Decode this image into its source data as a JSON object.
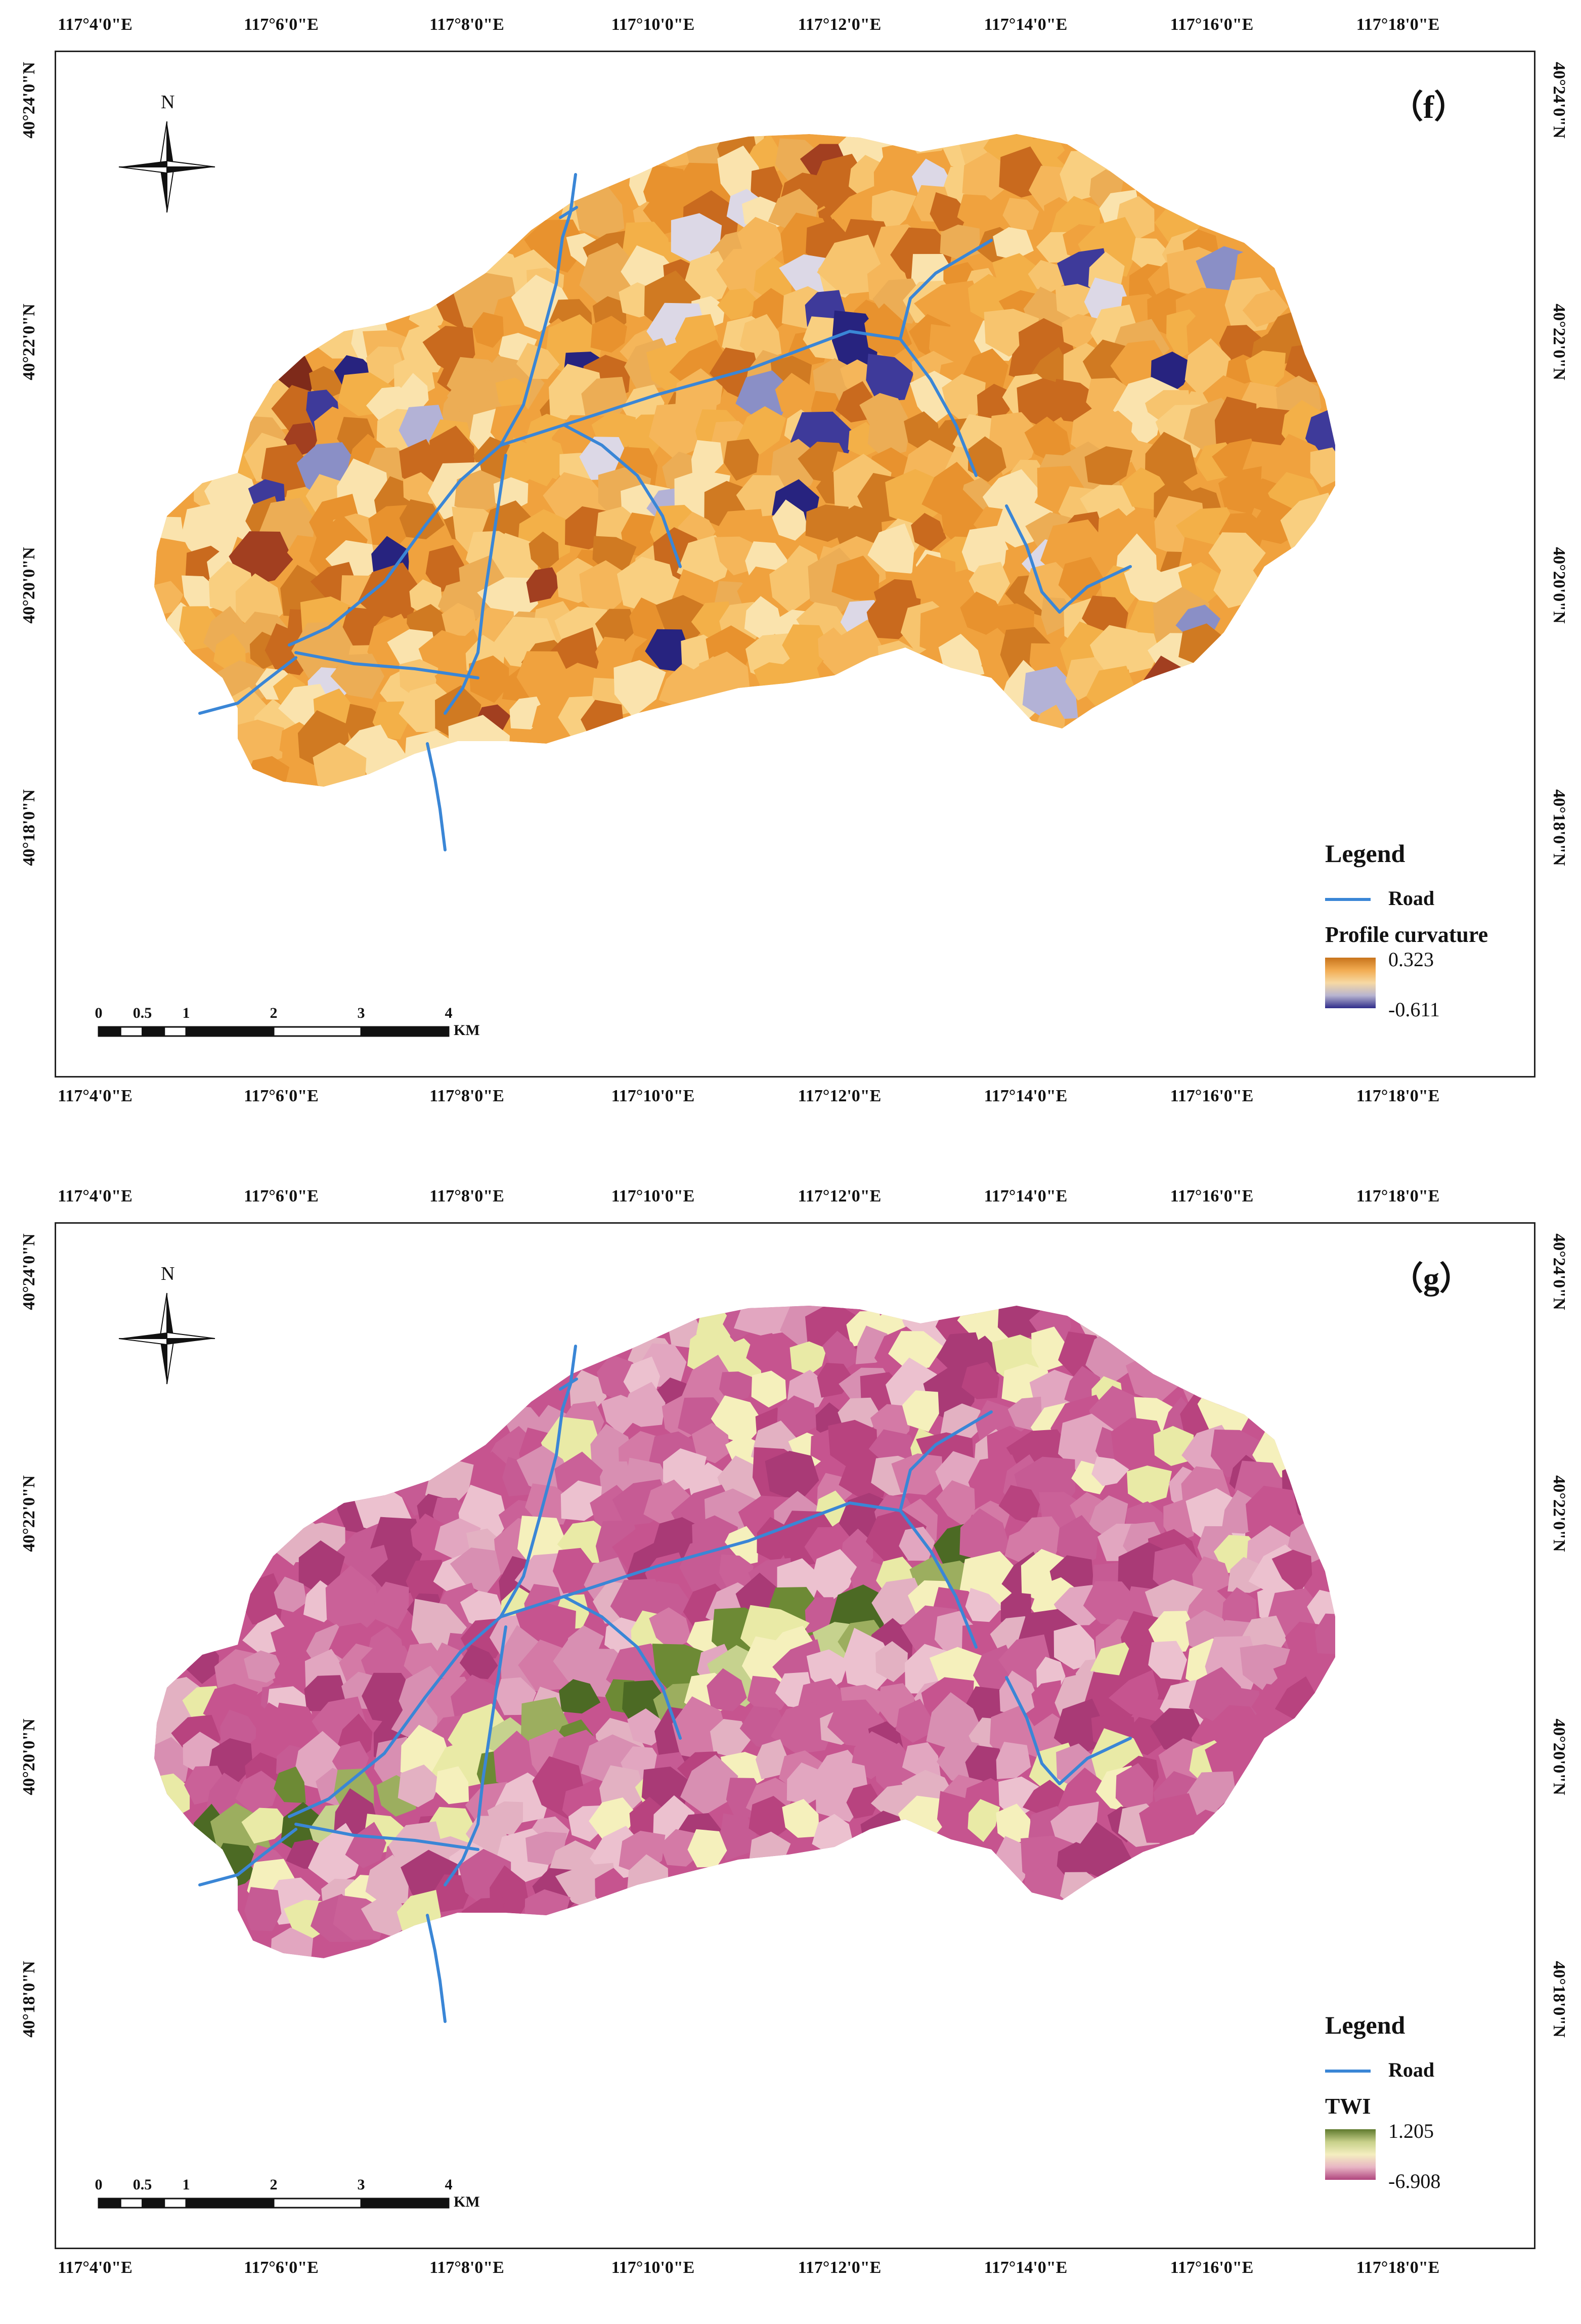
{
  "lon_labels": [
    "117°4'0\"E",
    "117°6'0\"E",
    "117°8'0\"E",
    "117°10'0\"E",
    "117°12'0\"E",
    "117°14'0\"E",
    "117°16'0\"E",
    "117°18'0\"E"
  ],
  "lat_labels": [
    "40°24'0\"N",
    "40°22'0\"N",
    "40°20'0\"N",
    "40°18'0\"N"
  ],
  "north_label": "N",
  "scale_bar": {
    "ticks": [
      "0",
      "0.5",
      "1",
      "2",
      "3",
      "4"
    ],
    "unit": "KM"
  },
  "legend_title": "Legend",
  "road_label": "Road",
  "panels": [
    {
      "letter": "（f）",
      "variable": "Profile curvature",
      "max_label": "0.323",
      "min_label": "-0.611",
      "ramp_colors": [
        "#c8741c",
        "#f2ac52",
        "#f6d9a4",
        "#b7b4d0",
        "#2f2c8a"
      ],
      "cell_colors": [
        "#f0a23e",
        "#f5b65a",
        "#e8922e",
        "#f9cf80",
        "#d07a22",
        "#fae3ad",
        "#c96a1e",
        "#f3b048",
        "#ecad55",
        "#f7c46e"
      ],
      "accent_colors": [
        "#3e3a9a",
        "#27237f",
        "#8a8fc6",
        "#b3b2d6",
        "#7e2a1a",
        "#a23f20",
        "#dcd8e6"
      ]
    },
    {
      "letter": "（g）",
      "variable": "TWI",
      "max_label": "1.205",
      "min_label": "-6.908",
      "ramp_colors": [
        "#5f7a2e",
        "#c7d08a",
        "#f4eec0",
        "#e8b5c4",
        "#b0467e"
      ],
      "cell_colors": [
        "#c6548f",
        "#d47aa6",
        "#b8437f",
        "#e2a6c0",
        "#ca6198",
        "#ecc1cf",
        "#a93a76",
        "#d88fb2",
        "#e3b1c2",
        "#c65b94"
      ],
      "accent_colors": [
        "#f5f0bc",
        "#e9eaa6",
        "#c6d28e",
        "#9cae5f",
        "#6d8a35",
        "#4c6a24",
        "#f1d9c4"
      ]
    }
  ],
  "road_color": "#3a86d6"
}
